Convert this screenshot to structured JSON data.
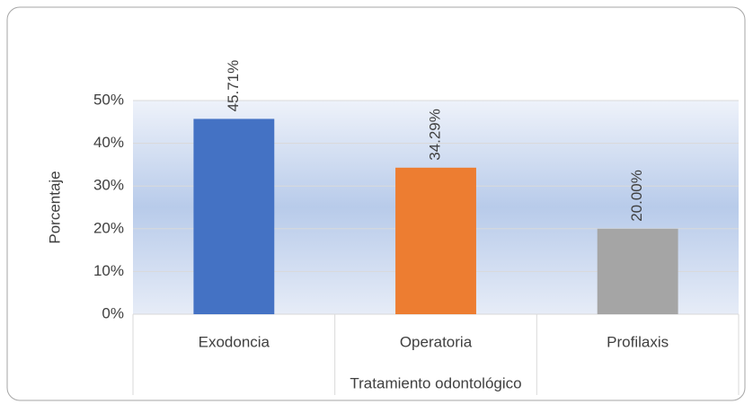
{
  "chart_data": {
    "type": "bar",
    "categories": [
      "Exodoncia",
      "Operatoria",
      "Profilaxis"
    ],
    "values": [
      45.71,
      34.29,
      20.0
    ],
    "value_labels": [
      "45.71%",
      "34.29%",
      "20.00%"
    ],
    "colors": [
      "#4472c4",
      "#ed7d31",
      "#a5a5a5"
    ],
    "ylim": [
      0,
      50
    ],
    "yticks": [
      {
        "value": 0,
        "label": "0%"
      },
      {
        "value": 10,
        "label": "10%"
      },
      {
        "value": 20,
        "label": "20%"
      },
      {
        "value": 30,
        "label": "30%"
      },
      {
        "value": 40,
        "label": "40%"
      },
      {
        "value": 50,
        "label": "50%"
      }
    ],
    "ylabel": "Porcentaje",
    "xlabel": "Tratamiento odontológico",
    "grid": true
  }
}
